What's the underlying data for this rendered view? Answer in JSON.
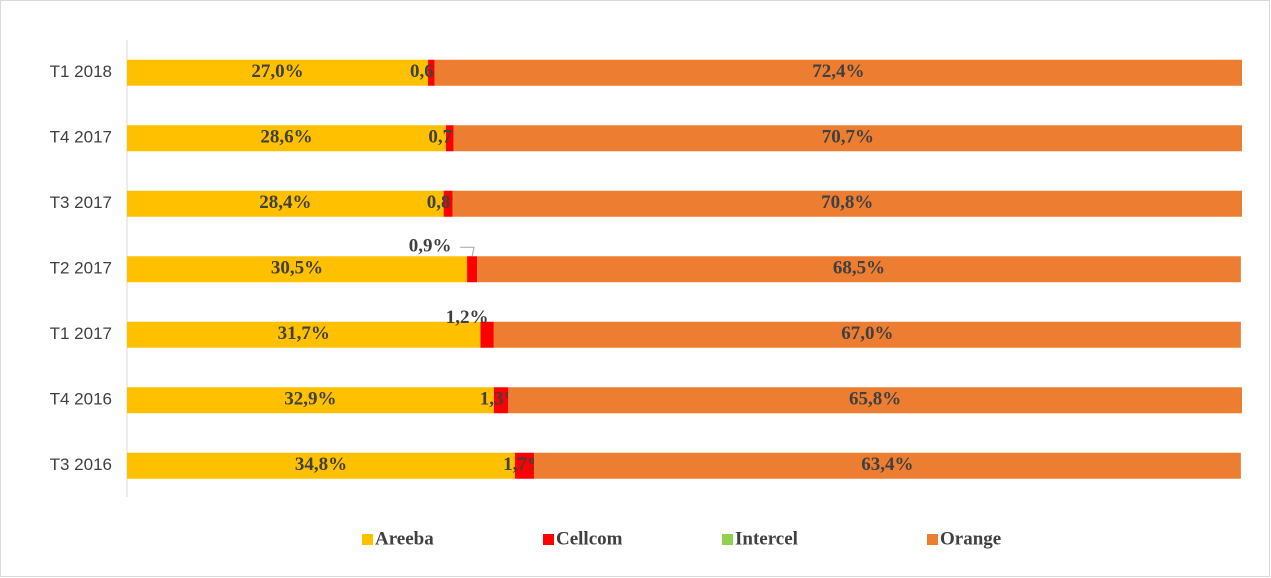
{
  "chart_data": {
    "type": "bar",
    "orientation": "horizontal",
    "stacked": true,
    "categories": [
      "T1 2018",
      "T4 2017",
      "T3 2017",
      "T2 2017",
      "T1 2017",
      "T4 2016",
      "T3 2016"
    ],
    "xlim": [
      0,
      100
    ],
    "legend": "bottom",
    "series": [
      {
        "name": "Areeba",
        "color": "#FFC000",
        "values": [
          27.0,
          28.6,
          28.4,
          30.5,
          31.7,
          32.9,
          34.8
        ],
        "value_labels": [
          "27,0%",
          "28,6%",
          "28,4%",
          "30,5%",
          "31,7%",
          "32,9%",
          "34,8%"
        ]
      },
      {
        "name": "Cellcom",
        "color": "#FF0000",
        "values": [
          0.6,
          0.7,
          0.8,
          0.9,
          1.2,
          1.3,
          1.7
        ],
        "value_labels": [
          "0,6%",
          "0,7%",
          "0,8%",
          "0,9%",
          "1,2%",
          "1,3%",
          "1,7%"
        ]
      },
      {
        "name": "Intercel",
        "color": "#92D050",
        "values": [
          0,
          0,
          0,
          0,
          0,
          0,
          0
        ]
      },
      {
        "name": "Orange",
        "color": "#ED7D31",
        "values": [
          72.4,
          70.7,
          70.8,
          68.5,
          67.0,
          65.8,
          63.4
        ],
        "value_labels": [
          "72,4%",
          "70,7%",
          "70,8%",
          "68,5%",
          "67,0%",
          "65,8%",
          "63,4%"
        ]
      }
    ]
  }
}
